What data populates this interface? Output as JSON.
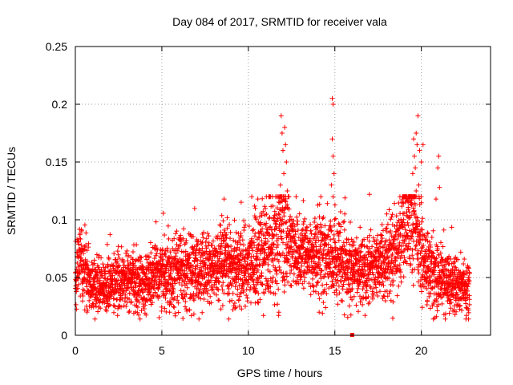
{
  "chart_data": {
    "type": "scatter",
    "title": "Day 084 of 2017, SRMTID for receiver vala",
    "xlabel": "GPS time / hours",
    "ylabel": "SRMTID / TECUs",
    "xlim": [
      0,
      24
    ],
    "ylim": [
      0,
      0.25
    ],
    "xticks": [
      0,
      5,
      10,
      15,
      20
    ],
    "xtick_labels": [
      "0",
      "5",
      "10",
      "15",
      "20"
    ],
    "yticks": [
      0,
      0.05,
      0.1,
      0.15,
      0.2,
      0.25
    ],
    "ytick_labels": [
      "0",
      "0.05",
      "0.1",
      "0.15",
      "0.2",
      "0.25"
    ],
    "grid": true,
    "marker": "+",
    "series": [
      {
        "name": "SRMTID",
        "color": "#ff0000",
        "profile_hours": [
          0,
          0.2,
          1,
          2,
          3,
          4,
          5,
          6,
          7,
          8,
          9,
          10,
          10.8,
          11.5,
          12,
          12.5,
          13,
          14,
          14.8,
          15.5,
          16,
          17,
          18,
          18.7,
          19.2,
          19.7,
          20.2,
          21,
          22,
          22.8
        ],
        "profile_median": [
          0.045,
          0.07,
          0.042,
          0.045,
          0.047,
          0.045,
          0.055,
          0.058,
          0.055,
          0.058,
          0.06,
          0.06,
          0.07,
          0.085,
          0.09,
          0.08,
          0.072,
          0.068,
          0.07,
          0.06,
          0.055,
          0.06,
          0.065,
          0.08,
          0.1,
          0.09,
          0.06,
          0.05,
          0.045,
          0.04
        ],
        "profile_spread": [
          0.012,
          0.015,
          0.012,
          0.012,
          0.013,
          0.013,
          0.015,
          0.016,
          0.016,
          0.016,
          0.017,
          0.018,
          0.02,
          0.025,
          0.028,
          0.02,
          0.018,
          0.018,
          0.02,
          0.016,
          0.014,
          0.015,
          0.016,
          0.018,
          0.025,
          0.025,
          0.018,
          0.014,
          0.012,
          0.012
        ],
        "spikes": [
          {
            "x": 11.9,
            "y": 0.19
          },
          {
            "x": 11.95,
            "y": 0.175
          },
          {
            "x": 12.0,
            "y": 0.16
          },
          {
            "x": 12.1,
            "y": 0.18
          },
          {
            "x": 12.15,
            "y": 0.165
          },
          {
            "x": 12.2,
            "y": 0.15
          },
          {
            "x": 12.05,
            "y": 0.14
          },
          {
            "x": 11.85,
            "y": 0.13
          },
          {
            "x": 12.25,
            "y": 0.125
          },
          {
            "x": 11.8,
            "y": 0.12
          },
          {
            "x": 14.85,
            "y": 0.205
          },
          {
            "x": 14.9,
            "y": 0.2
          },
          {
            "x": 14.85,
            "y": 0.17
          },
          {
            "x": 14.9,
            "y": 0.155
          },
          {
            "x": 14.95,
            "y": 0.14
          },
          {
            "x": 14.9,
            "y": 0.12
          },
          {
            "x": 14.8,
            "y": 0.13
          },
          {
            "x": 19.8,
            "y": 0.19
          },
          {
            "x": 19.7,
            "y": 0.175
          },
          {
            "x": 19.75,
            "y": 0.165
          },
          {
            "x": 19.55,
            "y": 0.17
          },
          {
            "x": 19.6,
            "y": 0.155
          },
          {
            "x": 19.9,
            "y": 0.16
          },
          {
            "x": 19.65,
            "y": 0.145
          },
          {
            "x": 19.5,
            "y": 0.14
          },
          {
            "x": 19.85,
            "y": 0.13
          },
          {
            "x": 19.7,
            "y": 0.125
          },
          {
            "x": 20.0,
            "y": 0.15
          },
          {
            "x": 20.1,
            "y": 0.165
          },
          {
            "x": 21.0,
            "y": 0.155
          },
          {
            "x": 20.95,
            "y": 0.145
          },
          {
            "x": 21.05,
            "y": 0.128
          },
          {
            "x": 20.85,
            "y": 0.118
          },
          {
            "x": 17.0,
            "y": 0.122
          },
          {
            "x": 10.2,
            "y": 0.12
          },
          {
            "x": 10.4,
            "y": 0.11
          },
          {
            "x": 10.55,
            "y": 0.118
          },
          {
            "x": 8.6,
            "y": 0.118
          },
          {
            "x": 18.0,
            "y": 0.105
          }
        ],
        "flagged_point": {
          "x": 16.0,
          "y": 0.0
        }
      }
    ]
  }
}
